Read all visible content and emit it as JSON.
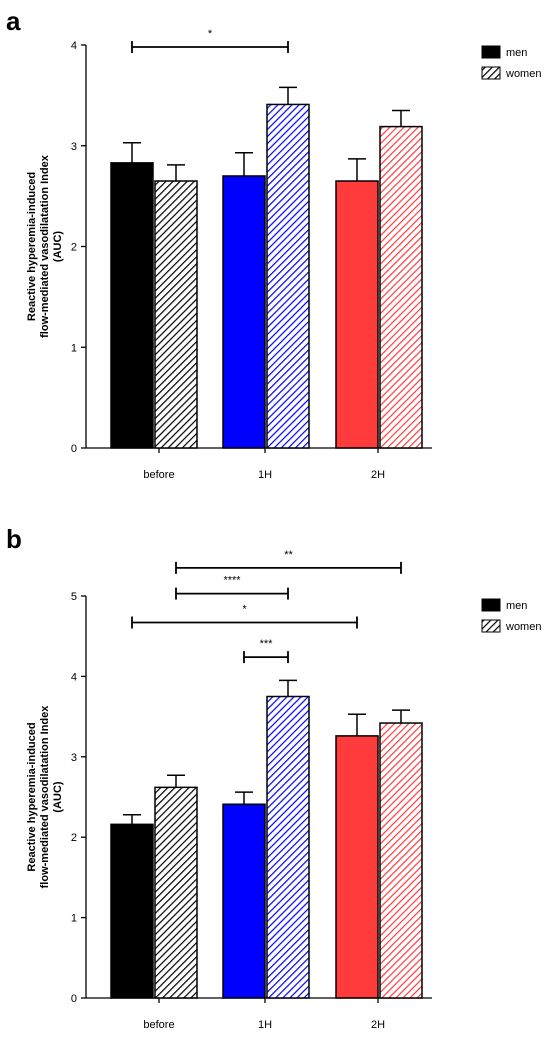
{
  "chart_data": [
    {
      "type": "bar",
      "panel": "a",
      "categories": [
        "before",
        "1H",
        "2H"
      ],
      "series": [
        {
          "name": "men",
          "values": [
            2.83,
            2.7,
            2.65
          ],
          "errors": [
            0.2,
            0.23,
            0.22
          ]
        },
        {
          "name": "women",
          "values": [
            2.65,
            3.41,
            3.19
          ],
          "errors": [
            0.16,
            0.17,
            0.16
          ]
        }
      ],
      "bar_colors": [
        "#000000",
        "#0000ff",
        "#ff3b3b"
      ],
      "hatch_series": "women",
      "ylabel_lines": [
        "Reactive hyperemia-induced",
        "flow-mediated vasodilatation Index",
        "(AUC)"
      ],
      "xlabel": "",
      "ylim": [
        0,
        4
      ],
      "yticks": [
        "0",
        "1",
        "2",
        "3",
        "4"
      ],
      "legend": "top-right",
      "significance": [
        {
          "from": 0,
          "to": 3,
          "label": "*",
          "height": 3.98
        }
      ]
    },
    {
      "type": "bar",
      "panel": "b",
      "categories": [
        "before",
        "1H",
        "2H"
      ],
      "series": [
        {
          "name": "men",
          "values": [
            2.16,
            2.41,
            3.26
          ],
          "errors": [
            0.12,
            0.15,
            0.27
          ]
        },
        {
          "name": "women",
          "values": [
            2.62,
            3.75,
            3.42
          ],
          "errors": [
            0.15,
            0.2,
            0.16
          ]
        }
      ],
      "bar_colors": [
        "#000000",
        "#0000ff",
        "#ff3b3b"
      ],
      "hatch_series": "women",
      "ylabel_lines": [
        "Reactive hyperemia-induced",
        "flow-mediated vasodilatation Index",
        "(AUC)"
      ],
      "xlabel": "",
      "ylim": [
        0,
        5
      ],
      "yticks": [
        "0",
        "1",
        "2",
        "3",
        "4",
        "5"
      ],
      "legend": "top-right",
      "significance": [
        {
          "from": 1,
          "to": 5,
          "label": "**",
          "height": 5.35
        },
        {
          "from": 1,
          "to": 3,
          "label": "****",
          "height": 5.03
        },
        {
          "from": 0,
          "to": 4,
          "label": "*",
          "height": 4.67
        },
        {
          "from": 2,
          "to": 3,
          "label": "***",
          "height": 4.24
        }
      ]
    }
  ]
}
